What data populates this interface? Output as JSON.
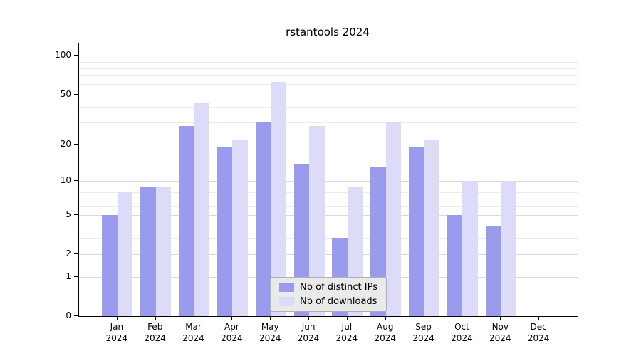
{
  "chart_data": {
    "type": "bar",
    "title": "rstantools 2024",
    "categories": [
      {
        "month": "Jan",
        "year": "2024"
      },
      {
        "month": "Feb",
        "year": "2024"
      },
      {
        "month": "Mar",
        "year": "2024"
      },
      {
        "month": "Apr",
        "year": "2024"
      },
      {
        "month": "May",
        "year": "2024"
      },
      {
        "month": "Jun",
        "year": "2024"
      },
      {
        "month": "Jul",
        "year": "2024"
      },
      {
        "month": "Aug",
        "year": "2024"
      },
      {
        "month": "Sep",
        "year": "2024"
      },
      {
        "month": "Oct",
        "year": "2024"
      },
      {
        "month": "Nov",
        "year": "2024"
      },
      {
        "month": "Dec",
        "year": "2024"
      }
    ],
    "series": [
      {
        "name": "Nb of distinct IPs",
        "color": "#9b9bed",
        "values": [
          5,
          9,
          28,
          19,
          30,
          14,
          3,
          13,
          19,
          5,
          4,
          0
        ]
      },
      {
        "name": "Nb of downloads",
        "color": "#dcdbf8",
        "values": [
          8,
          9,
          43,
          22,
          63,
          28,
          9,
          30,
          22,
          10,
          10,
          0
        ]
      }
    ],
    "y_axis": {
      "scale": "log1p",
      "ticks": [
        0,
        1,
        2,
        5,
        10,
        20,
        50,
        100
      ],
      "log_max": 2.1
    },
    "grid_major": [
      1,
      2,
      5,
      10,
      20,
      50,
      100
    ],
    "grid_minor": [
      3,
      4,
      6,
      7,
      8,
      9,
      30,
      40,
      60,
      70,
      80,
      90
    ],
    "legend": {
      "position": "lower center"
    },
    "xlabel": "",
    "ylabel": "",
    "grid": "on"
  }
}
